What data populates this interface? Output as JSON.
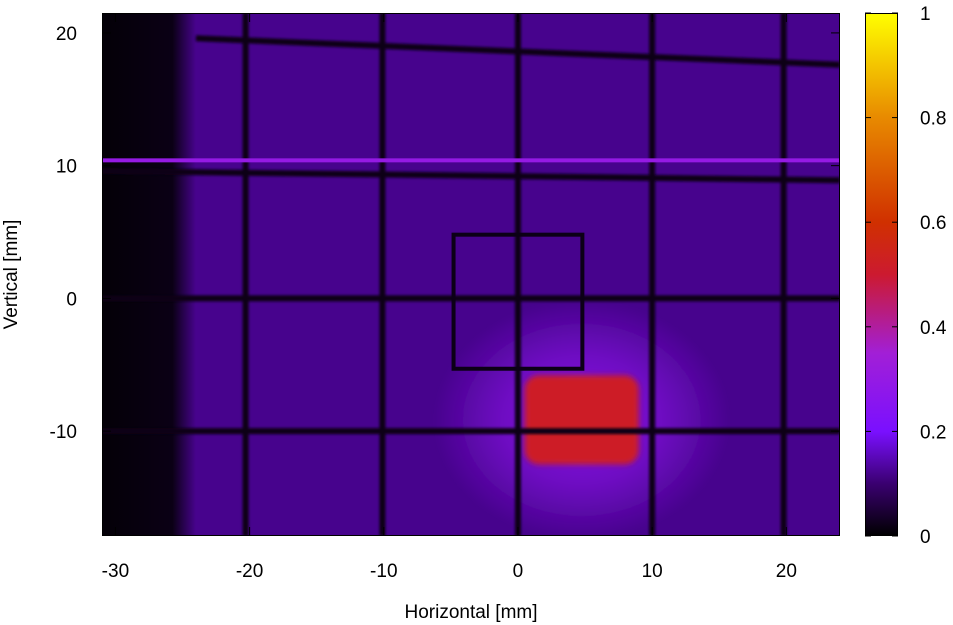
{
  "chart_data": {
    "type": "heatmap",
    "title": "",
    "xlabel": "Horizontal [mm]",
    "ylabel": "Vertical [mm]",
    "xlim": [
      -31,
      24
    ],
    "ylim": [
      -17.9,
      21.5
    ],
    "xticks": [
      -30,
      -20,
      -10,
      0,
      10,
      20
    ],
    "yticks": [
      -10,
      0,
      10,
      20
    ],
    "xtick_labels": [
      "-30",
      "-20",
      "-10",
      "0",
      "10",
      "20"
    ],
    "ytick_labels": [
      "-10",
      "0",
      "10",
      "20"
    ],
    "colorbar": {
      "range": [
        0,
        1
      ],
      "ticks": [
        0,
        0.2,
        0.4,
        0.6,
        0.8,
        1
      ],
      "tick_labels": [
        "0",
        "0.2",
        "0.4",
        "0.6",
        "0.8",
        "1"
      ],
      "stops": [
        {
          "v": 0.0,
          "color": "#000000"
        },
        {
          "v": 0.1,
          "color": "#3a0070"
        },
        {
          "v": 0.2,
          "color": "#7a10ff"
        },
        {
          "v": 0.35,
          "color": "#a21fd6"
        },
        {
          "v": 0.5,
          "color": "#cc1a30"
        },
        {
          "v": 0.6,
          "color": "#d03000"
        },
        {
          "v": 0.8,
          "color": "#e88a00"
        },
        {
          "v": 1.0,
          "color": "#ffff00"
        }
      ]
    },
    "background_intensity": 0.12,
    "dark_region_x": [
      -31,
      -24
    ],
    "grid_wires": {
      "vertical_x": [
        -20.3,
        -10.1,
        0,
        10,
        19.8
      ],
      "horizontal": [
        {
          "x": [
            -24,
            24
          ],
          "y": [
            19.6,
            17.6
          ]
        },
        {
          "x": [
            -31,
            24
          ],
          "y": [
            9.6,
            8.9
          ]
        },
        {
          "x": [
            -31,
            24
          ],
          "y": [
            0,
            0
          ]
        },
        {
          "x": [
            -31,
            24
          ],
          "y": [
            -10,
            -10
          ]
        }
      ],
      "intensity": 0.02
    },
    "bright_line": {
      "y": 10.4,
      "intensity": 0.3
    },
    "square_marker": {
      "x": [
        -4.8,
        4.8
      ],
      "y": [
        -5.3,
        4.8
      ]
    },
    "hotspot": {
      "x": [
        0.5,
        9.0
      ],
      "y": [
        -12.5,
        -5.8
      ],
      "peak_intensity": 0.52,
      "halo_radius_mm": [
        11,
        9
      ],
      "halo_intensity": 0.22
    }
  }
}
